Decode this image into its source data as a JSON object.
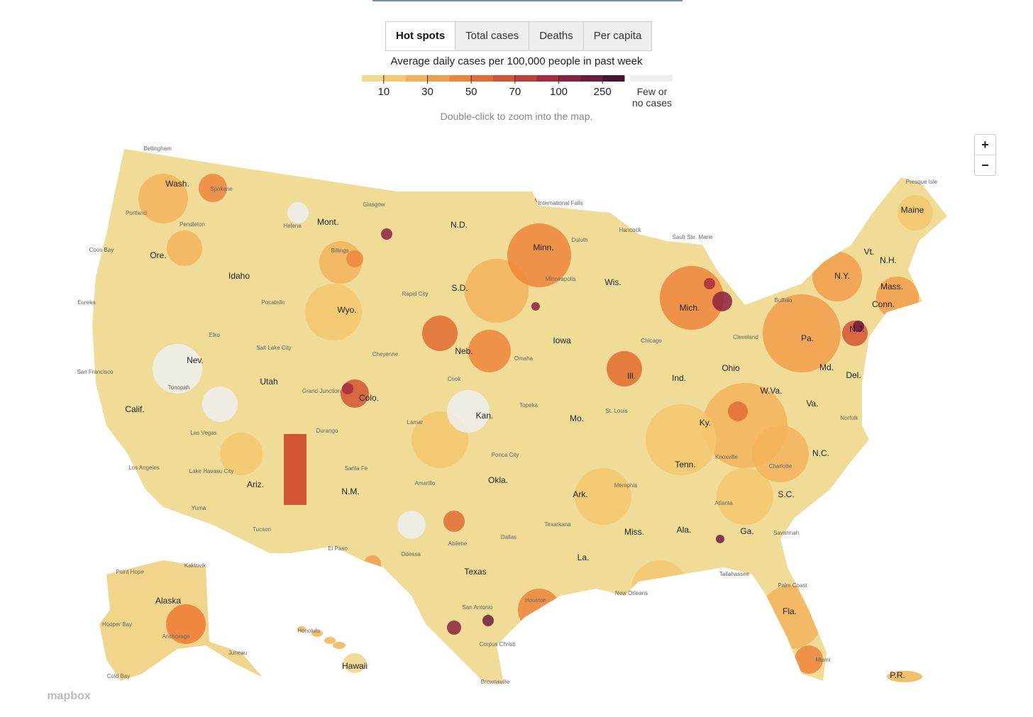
{
  "tabs": [
    "Hot spots",
    "Total cases",
    "Deaths",
    "Per capita"
  ],
  "legend": {
    "title": "Average daily cases per 100,000 people in past week",
    "ticks": [
      10,
      30,
      50,
      70,
      100,
      250
    ],
    "colors": [
      "#f2da8c",
      "#f4c870",
      "#f3b35c",
      "#f19d4a",
      "#ed853c",
      "#e26c34",
      "#d35434",
      "#bf3f37",
      "#a72d3c",
      "#8b213f",
      "#6e1b3d",
      "#4c1330"
    ],
    "no_data_color": "#eeeeee",
    "no_data_label": "Few or no cases"
  },
  "hint": "Double-click to zoom into the map.",
  "zoom_controls": [
    "+",
    "−"
  ],
  "state_labels": [
    "Wash.",
    "Ore.",
    "Calif.",
    "Nev.",
    "Idaho",
    "Mont.",
    "Wyo.",
    "Utah",
    "Colo.",
    "Ariz.",
    "N.M.",
    "N.D.",
    "S.D.",
    "Neb.",
    "Kan.",
    "Okla.",
    "Texas",
    "Minn.",
    "Iowa",
    "Mo.",
    "Ark.",
    "La.",
    "Wis.",
    "Ill.",
    "Mich.",
    "Ind.",
    "Ohio",
    "Ky.",
    "Tenn.",
    "Miss.",
    "Ala.",
    "Ga.",
    "Fla.",
    "S.C.",
    "N.C.",
    "Va.",
    "W.Va.",
    "Md.",
    "Del.",
    "Pa.",
    "N.J.",
    "N.Y.",
    "Conn.",
    "Mass.",
    "Vt.",
    "N.H.",
    "Maine",
    "Alaska",
    "Hawaii",
    "P.R."
  ],
  "city_labels": [
    "Bellingham",
    "Spokane",
    "Portland",
    "Pendleton",
    "Coos Bay",
    "Eureka",
    "San Francisco",
    "Helena",
    "Billings",
    "Glasgow",
    "Pocatello",
    "Elko",
    "Salt Lake City",
    "Tonopah",
    "Las Vegas",
    "Los Angeles",
    "Lake Havasu City",
    "Yuma",
    "Tucson",
    "Grand Junction",
    "Durango",
    "Santa Fe",
    "El Paso",
    "Cheyenne",
    "Rapid City",
    "Cook",
    "Lamar",
    "Amarillo",
    "Odessa",
    "Abilene",
    "Dallas",
    "San Antonio",
    "Houston",
    "Corpus Christi",
    "Brownsville",
    "International Falls",
    "Duluth",
    "Minneapolis",
    "Omaha",
    "Topeka",
    "Ponca City",
    "Texarkana",
    "Memphis",
    "St. Louis",
    "Chicago",
    "Hancock",
    "Sault Ste. Marie",
    "Cleveland",
    "Knoxville",
    "Charlotte",
    "Atlanta",
    "Savannah",
    "Tallahassee",
    "New Orleans",
    "Palm Coast",
    "Miami",
    "Norfolk",
    "Buffalo",
    "Presque Isle",
    "Kaktovik",
    "Point Hope",
    "Hooper Bay",
    "Anchorage",
    "Juneau",
    "Cold Bay",
    "Honolulu"
  ],
  "attribution": "mapbox"
}
